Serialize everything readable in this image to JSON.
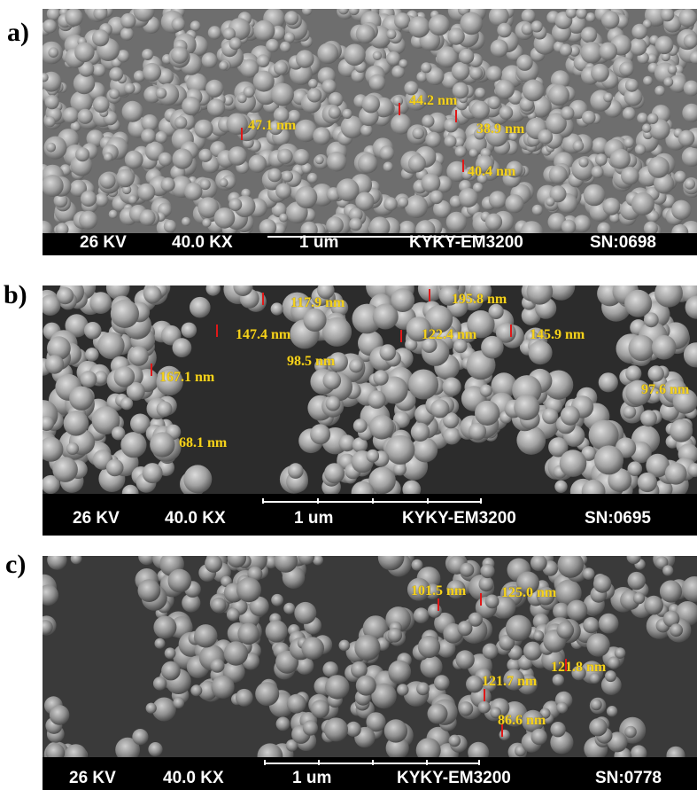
{
  "panels": [
    {
      "label": "a)",
      "bar": {
        "voltage": "26 KV",
        "magnification": "40.0 KX",
        "scale": "1 um",
        "instrument": "KYKY-EM3200",
        "serial": "SN:0698"
      },
      "measurements": [
        "47.1 nm",
        "44.2 nm",
        "38.9 nm",
        "40.4 nm"
      ]
    },
    {
      "label": "b)",
      "bar": {
        "voltage": "26 KV",
        "magnification": "40.0 KX",
        "scale": "1 um",
        "instrument": "KYKY-EM3200",
        "serial": "SN:0695"
      },
      "measurements": [
        "117.9 nm",
        "195.8 nm",
        "147.4 nm",
        "122.4 nm",
        "145.9 nm",
        "98.5 nm",
        "167.1 nm",
        "97.6 nm",
        "68.1 nm"
      ]
    },
    {
      "label": "c)",
      "bar": {
        "voltage": "26 KV",
        "magnification": "40.0 KX",
        "scale": "1 um",
        "instrument": "KYKY-EM3200",
        "serial": "SN:0778"
      },
      "measurements": [
        "101.5 nm",
        "125.0 nm",
        "121.8 nm",
        "121.7 nm",
        "86.6 nm"
      ]
    }
  ],
  "colors": {
    "annotation": "#f5d21c",
    "marker": "#e01818",
    "databar": "#000000"
  }
}
